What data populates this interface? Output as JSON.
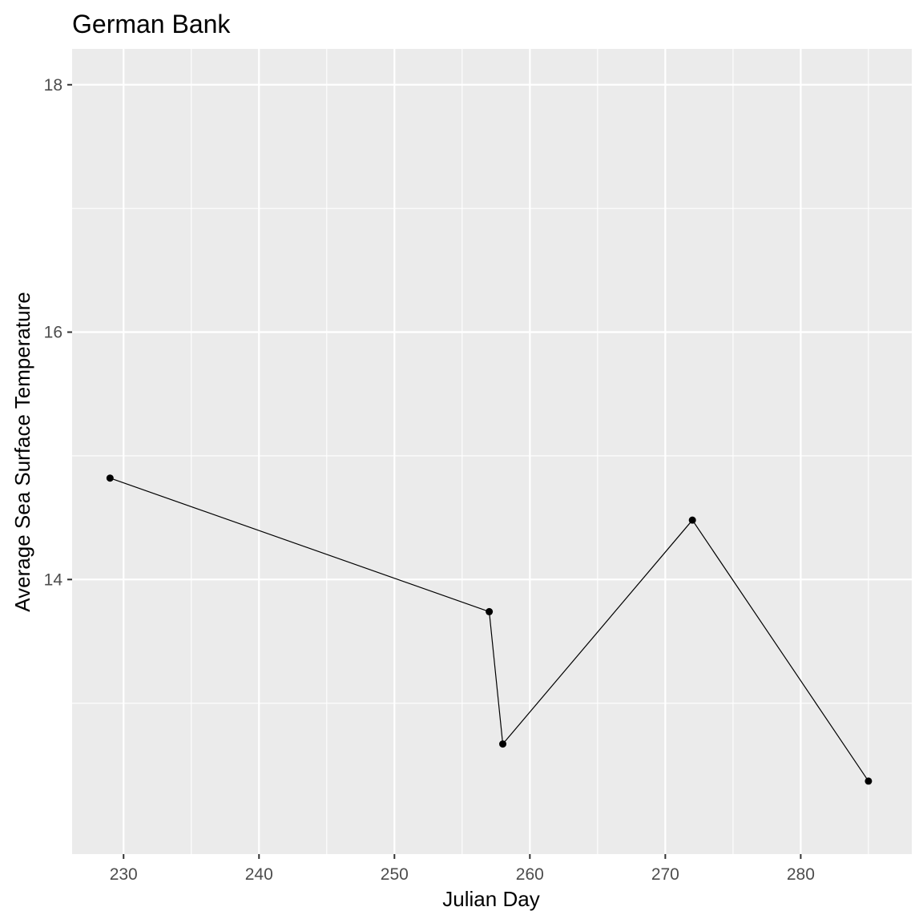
{
  "chart_data": {
    "type": "line",
    "title": "German Bank",
    "xlabel": "Julian Day",
    "ylabel": "Average Sea Surface Temperature",
    "x_ticks": [
      230,
      240,
      250,
      260,
      270,
      280
    ],
    "y_ticks": [
      14,
      16,
      18
    ],
    "xlim": [
      226.2,
      288.2
    ],
    "ylim": [
      11.78,
      18.29
    ],
    "grid": true,
    "legend": "none",
    "series": [
      {
        "x": [
          229,
          257,
          258,
          272,
          285
        ],
        "y": [
          14.82,
          13.74,
          12.67,
          14.48,
          12.37
        ]
      }
    ],
    "colors": {
      "panel": "#ebebeb",
      "grid": "#ffffff",
      "line": "#000000",
      "tick_text": "#4d4d4d",
      "tick_mark": "#333333"
    }
  }
}
